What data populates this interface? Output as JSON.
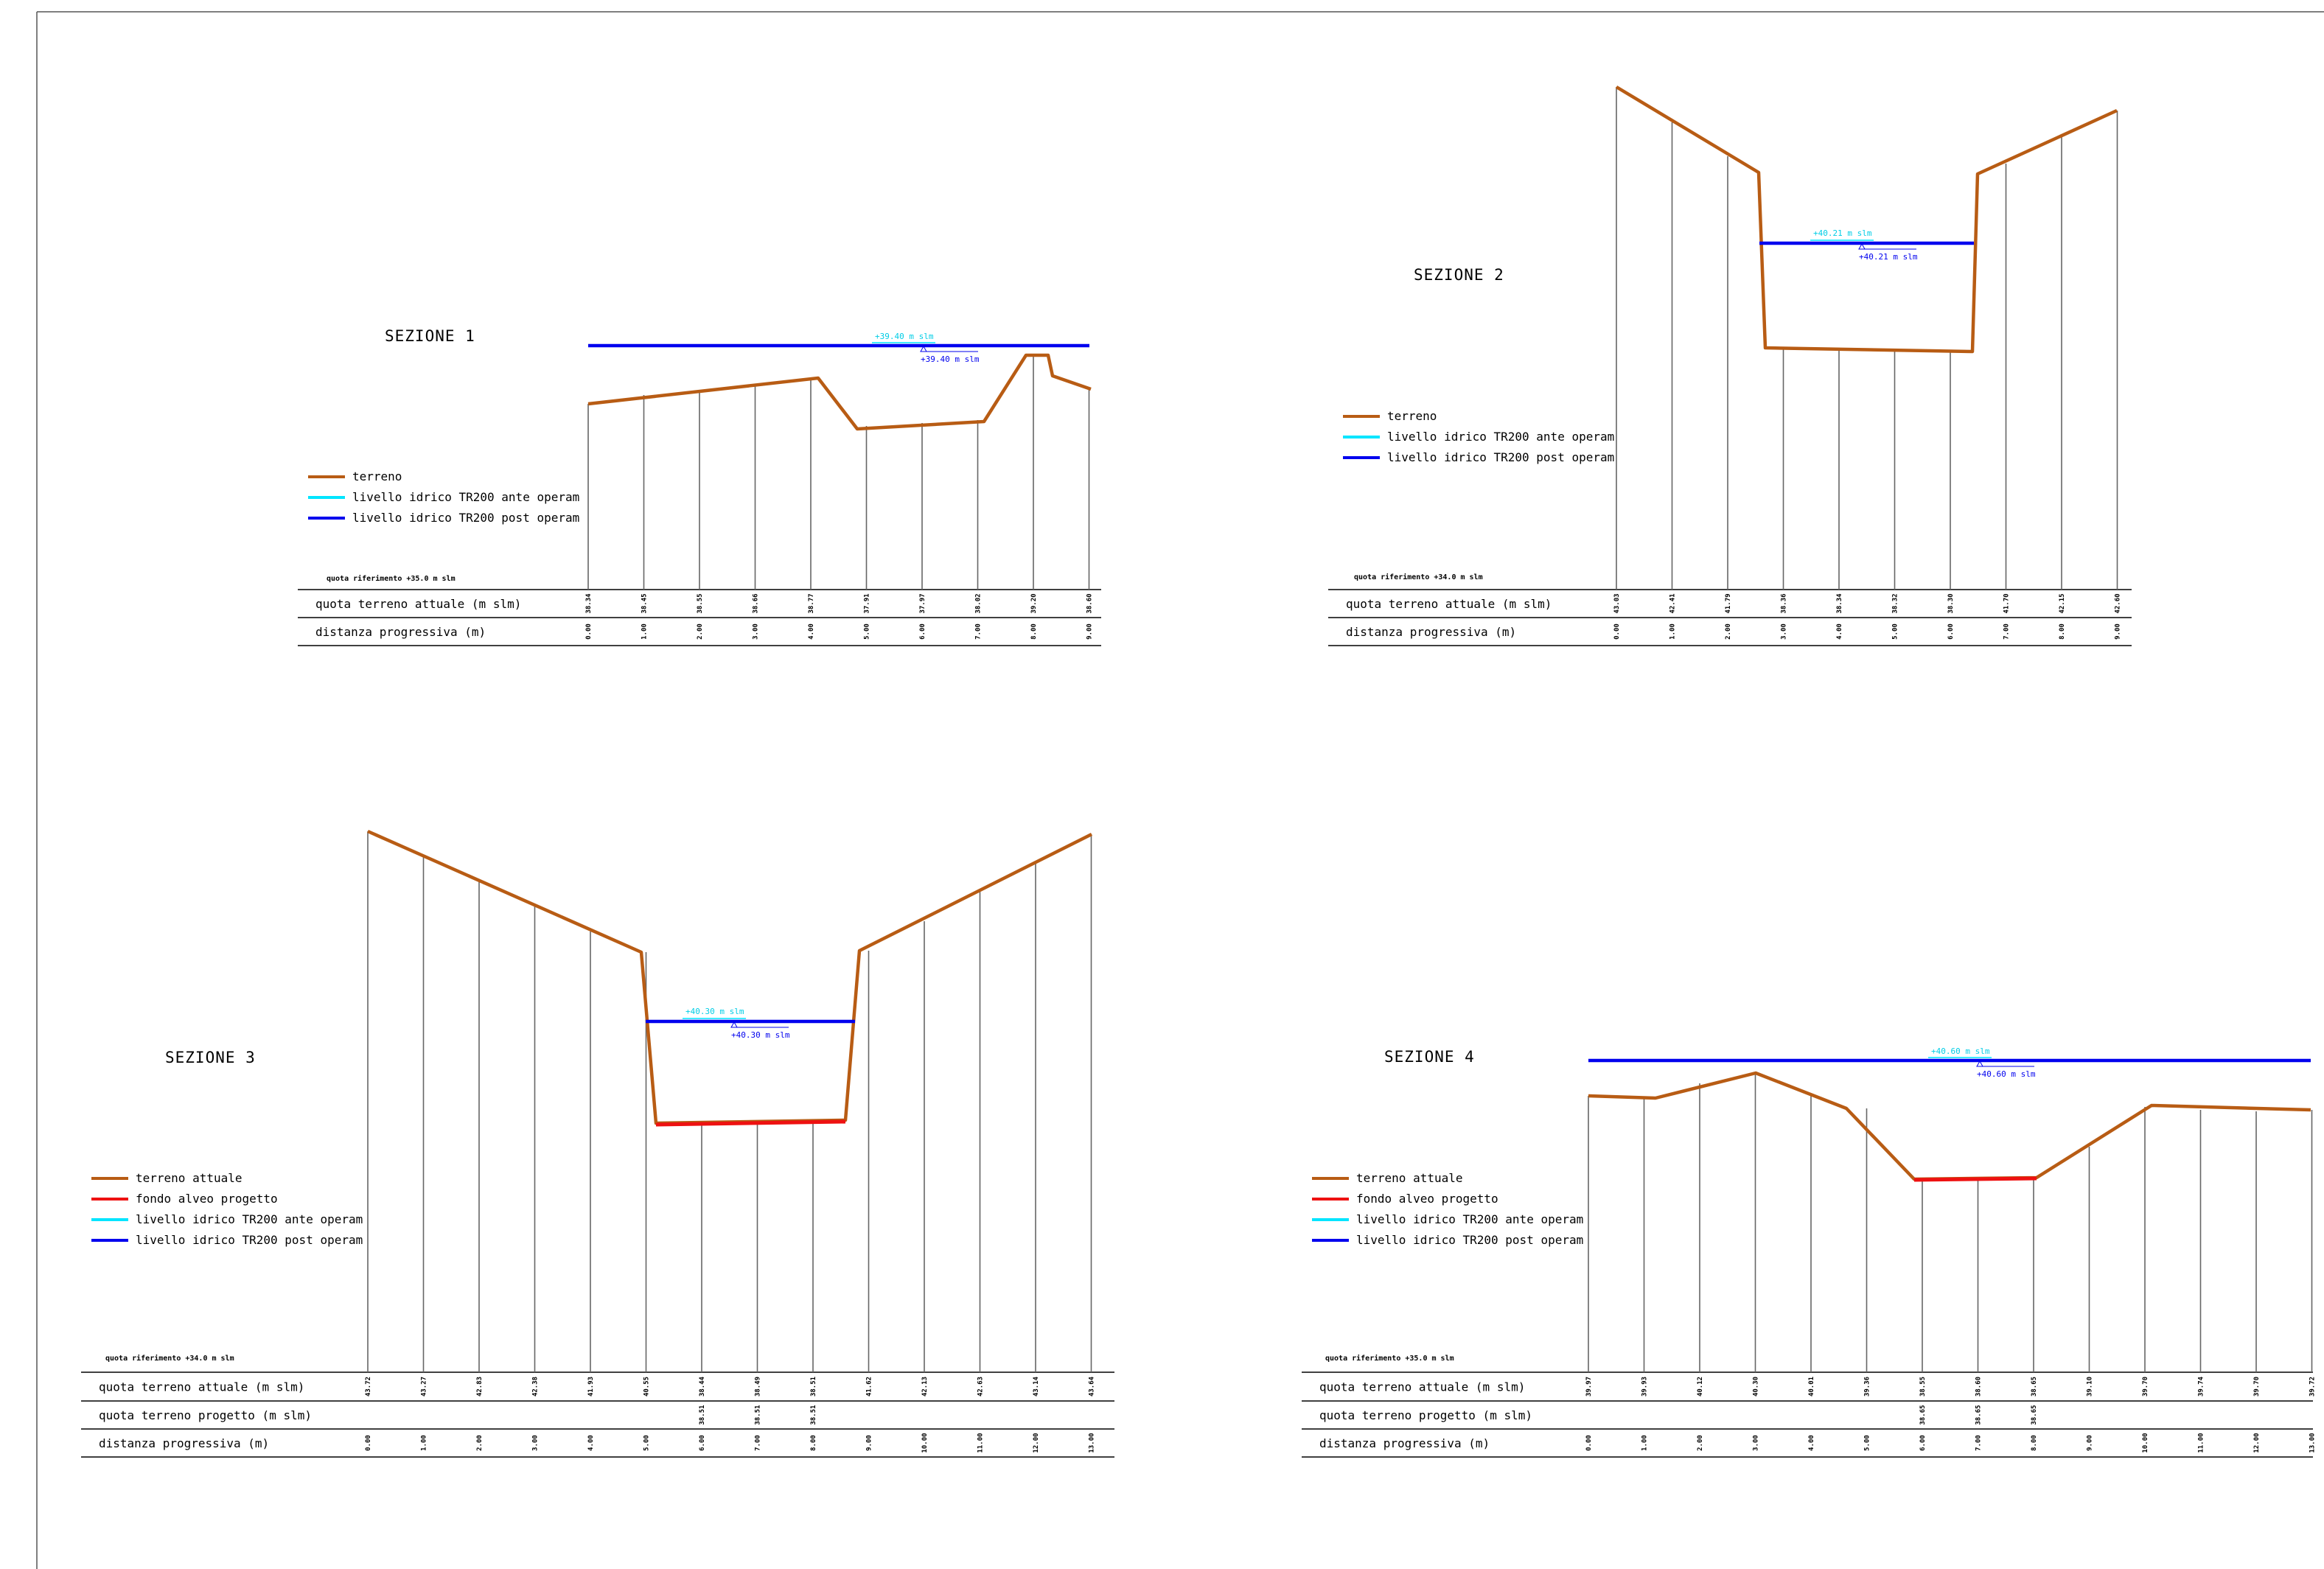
{
  "sections": [
    {
      "id": "s1",
      "title": "SEZIONE 1",
      "reference": "quota riferimento +35.0 m slm",
      "rows": {
        "actual": "quota terreno attuale (m slm)",
        "distance": "distanza progressiva (m)"
      },
      "legend": [
        {
          "label": "terreno",
          "color": "#b85c14"
        },
        {
          "label": "livello idrico TR200 ante operam",
          "color": "#00e5ff"
        },
        {
          "label": "livello idrico TR200 post operam",
          "color": "#0000ee"
        }
      ],
      "distances": [
        "0.00",
        "1.00",
        "2.00",
        "3.00",
        "4.00",
        "5.00",
        "6.00",
        "7.00",
        "8.00",
        "9.00"
      ],
      "actual": [
        "38.34",
        "38.45",
        "38.55",
        "38.66",
        "38.77",
        "37.91",
        "37.97",
        "38.02",
        "39.20",
        "38.60"
      ],
      "water_ante": "+39.40 m slm",
      "water_post": "+39.40 m slm"
    },
    {
      "id": "s2",
      "title": "SEZIONE 2",
      "reference": "quota riferimento +34.0 m slm",
      "rows": {
        "actual": "quota terreno attuale (m slm)",
        "distance": "distanza progressiva (m)"
      },
      "legend": [
        {
          "label": "terreno",
          "color": "#b85c14"
        },
        {
          "label": "livello idrico TR200 ante operam",
          "color": "#00e5ff"
        },
        {
          "label": "livello idrico TR200 post operam",
          "color": "#0000ee"
        }
      ],
      "distances": [
        "0.00",
        "1.00",
        "2.00",
        "3.00",
        "4.00",
        "5.00",
        "6.00",
        "7.00",
        "8.00",
        "9.00"
      ],
      "actual": [
        "43.03",
        "42.41",
        "41.79",
        "38.36",
        "38.34",
        "38.32",
        "38.30",
        "41.70",
        "42.15",
        "42.60"
      ],
      "water_ante": "+40.21 m slm",
      "water_post": "+40.21 m slm"
    },
    {
      "id": "s3",
      "title": "SEZIONE 3",
      "reference": "quota riferimento +34.0 m slm",
      "rows": {
        "actual": "quota terreno attuale (m slm)",
        "project": "quota terreno progetto (m slm)",
        "distance": "distanza progressiva (m)"
      },
      "legend": [
        {
          "label": "terreno attuale",
          "color": "#b85c14"
        },
        {
          "label": "fondo alveo progetto",
          "color": "#ee1111"
        },
        {
          "label": "livello idrico TR200 ante operam",
          "color": "#00e5ff"
        },
        {
          "label": "livello idrico TR200 post operam",
          "color": "#0000ee"
        }
      ],
      "distances": [
        "0.00",
        "1.00",
        "2.00",
        "3.00",
        "4.00",
        "5.00",
        "6.00",
        "7.00",
        "8.00",
        "9.00",
        "10.00",
        "11.00",
        "12.00",
        "13.00"
      ],
      "actual": [
        "43.72",
        "43.27",
        "42.83",
        "42.38",
        "41.93",
        "40.55",
        "38.44",
        "38.49",
        "38.51",
        "41.62",
        "42.13",
        "42.63",
        "43.14",
        "43.64"
      ],
      "project": [
        "",
        "",
        "",
        "",
        "",
        "",
        "38.51",
        "38.51",
        "38.51",
        "",
        "",
        "",
        "",
        ""
      ],
      "water_ante": "+40.30 m slm",
      "water_post": "+40.30 m slm"
    },
    {
      "id": "s4",
      "title": "SEZIONE 4",
      "reference": "quota riferimento +35.0 m slm",
      "rows": {
        "actual": "quota terreno attuale (m slm)",
        "project": "quota terreno progetto (m slm)",
        "distance": "distanza progressiva (m)"
      },
      "legend": [
        {
          "label": "terreno attuale",
          "color": "#b85c14"
        },
        {
          "label": "fondo alveo progetto",
          "color": "#ee1111"
        },
        {
          "label": "livello idrico TR200 ante operam",
          "color": "#00e5ff"
        },
        {
          "label": "livello idrico TR200 post operam",
          "color": "#0000ee"
        }
      ],
      "distances": [
        "0.00",
        "1.00",
        "2.00",
        "3.00",
        "4.00",
        "5.00",
        "6.00",
        "7.00",
        "8.00",
        "9.00",
        "10.00",
        "11.00",
        "12.00",
        "13.00"
      ],
      "actual": [
        "39.97",
        "39.93",
        "40.12",
        "40.30",
        "40.01",
        "39.36",
        "38.55",
        "38.60",
        "38.65",
        "39.10",
        "39.70",
        "39.74",
        "39.70",
        "39.72"
      ],
      "project": [
        "",
        "",
        "",
        "",
        "",
        "",
        "38.65",
        "38.65",
        "38.65",
        "",
        "",
        "",
        "",
        ""
      ],
      "water_ante": "+40.60 m slm",
      "water_post": "+40.60 m slm"
    }
  ]
}
